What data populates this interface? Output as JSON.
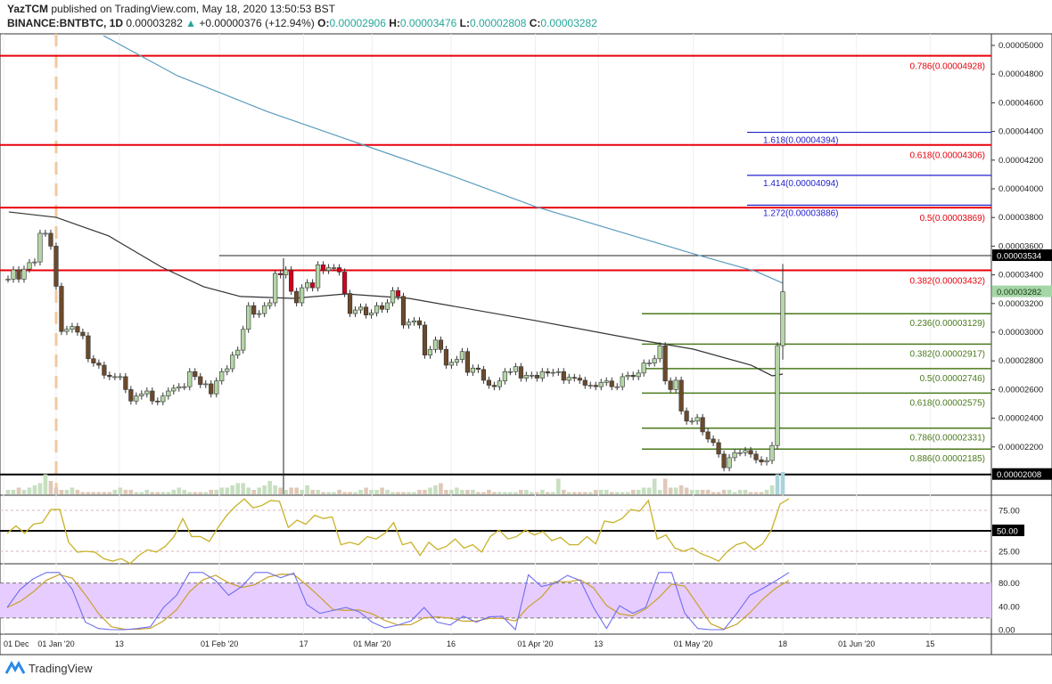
{
  "header": {
    "publisher": "YazTCM",
    "published_text": "published on TradingView.com, May 18, 2020 13:50:53 BST",
    "symbol": "BINANCE:BNTBTC, 1D",
    "last": "0.00003282",
    "change": "+0.00000376 (+12.94%)",
    "o_label": "O:",
    "o": "0.00002906",
    "h_label": "H:",
    "h": "0.00003476",
    "l_label": "L:",
    "l": "0.00002808",
    "c_label": "C:",
    "c": "0.00003282"
  },
  "footer": {
    "brand": "TradingView"
  },
  "colors": {
    "up": "#b5d6a7",
    "down_above_ma": "#d0021b",
    "down_below_ma": "#6b4a2b",
    "ma200": "#5b9bbd",
    "ma": "#333333",
    "fib_red": "#e8000b",
    "fib_blue": "#2222cc",
    "fib_green": "#4a7a1c",
    "rsi": "#c8b227",
    "stoch_k": "#6f6ff0",
    "stoch_d": "#c8a12a",
    "stoch_band": "#e7ccff",
    "last_price_bg": "#a5d6a7"
  },
  "chart_data": {
    "type": "candlestick",
    "last_date": "2020-05-18",
    "y_ticks": [
      "0.00005000",
      "0.00004800",
      "0.00004600",
      "0.00004400",
      "0.00004200",
      "0.00004000",
      "0.00003800",
      "0.00003600",
      "0.00003400",
      "0.00003200",
      "0.00003000",
      "0.00002800",
      "0.00002600",
      "0.00002400",
      "0.00002200"
    ],
    "x_ticks": [
      {
        "label": "01 Dec",
        "date": "2019-12-22"
      },
      {
        "label": "01 Jan '20",
        "date": "2020-01-01"
      },
      {
        "label": "13",
        "date": "2020-01-13"
      },
      {
        "label": "01 Feb '20",
        "date": "2020-02-01"
      },
      {
        "label": "17",
        "date": "2020-02-17"
      },
      {
        "label": "01 Mar '20",
        "date": "2020-03-01"
      },
      {
        "label": "16",
        "date": "2020-03-16"
      },
      {
        "label": "01 Apr '20",
        "date": "2020-04-01"
      },
      {
        "label": "13",
        "date": "2020-04-13"
      },
      {
        "label": "01 May '20",
        "date": "2020-05-01"
      },
      {
        "label": "18",
        "date": "2020-05-18"
      },
      {
        "label": "01 Jun '20",
        "date": "2020-06-01"
      },
      {
        "label": "15",
        "date": "2020-06-15"
      }
    ],
    "closes": [
      3.37e-05,
      3.435e-05,
      3.37e-05,
      3.44e-05,
      3.485e-05,
      3.49e-05,
      3.69e-05,
      3.69e-05,
      3.6e-05,
      3.32e-05,
      3.005e-05,
      3.02e-05,
      3.04e-05,
      3e-05,
      2.975e-05,
      2.815e-05,
      2.785e-05,
      2.77e-05,
      2.7e-05,
      2.69e-05,
      2.69e-05,
      2.69e-05,
      2.6e-05,
      2.52e-05,
      2.555e-05,
      2.57e-05,
      2.59e-05,
      2.52e-05,
      2.515e-05,
      2.555e-05,
      2.59e-05,
      2.61e-05,
      2.62e-05,
      2.62e-05,
      2.725e-05,
      2.69e-05,
      2.635e-05,
      2.64e-05,
      2.57e-05,
      2.66e-05,
      2.725e-05,
      2.745e-05,
      2.84e-05,
      2.875e-05,
      3.02e-05,
      3.185e-05,
      3.125e-05,
      3.13e-05,
      3.185e-05,
      3.205e-05,
      3.41e-05,
      3.4e-05,
      3.435e-05,
      3.285e-05,
      3.205e-05,
      3.31e-05,
      3.345e-05,
      3.31e-05,
      3.47e-05,
      3.43e-05,
      3.45e-05,
      3.45e-05,
      3.42e-05,
      3.27e-05,
      3.13e-05,
      3.155e-05,
      3.175e-05,
      3.12e-05,
      3.135e-05,
      3.185e-05,
      3.16e-05,
      3.205e-05,
      3.29e-05,
      3.25e-05,
      3.05e-05,
      3.07e-05,
      3.08e-05,
      3.05e-05,
      2.84e-05,
      2.88e-05,
      2.945e-05,
      2.88e-05,
      2.77e-05,
      2.79e-05,
      2.81e-05,
      2.865e-05,
      2.72e-05,
      2.75e-05,
      2.74e-05,
      2.665e-05,
      2.63e-05,
      2.62e-05,
      2.66e-05,
      2.725e-05,
      2.725e-05,
      2.76e-05,
      2.68e-05,
      2.7e-05,
      2.7e-05,
      2.68e-05,
      2.725e-05,
      2.715e-05,
      2.72e-05,
      2.725e-05,
      2.665e-05,
      2.685e-05,
      2.68e-05,
      2.665e-05,
      2.63e-05,
      2.63e-05,
      2.62e-05,
      2.65e-05,
      2.66e-05,
      2.62e-05,
      2.62e-05,
      2.69e-05,
      2.7e-05,
      2.69e-05,
      2.715e-05,
      2.785e-05,
      2.785e-05,
      2.815e-05,
      2.905e-05,
      2.66e-05,
      2.6e-05,
      2.665e-05,
      2.45e-05,
      2.38e-05,
      2.38e-05,
      2.405e-05,
      2.305e-05,
      2.255e-05,
      2.23e-05,
      2.15e-05,
      2.055e-05,
      2.125e-05,
      2.16e-05,
      2.16e-05,
      2.175e-05,
      2.15e-05,
      2.11e-05,
      2.095e-05,
      2.105e-05,
      2.21e-05,
      2.906e-05,
      3.282e-05
    ],
    "last_candle": {
      "open": 2.906e-05,
      "high": 3.476e-05,
      "low": 2.808e-05,
      "close": 3.282e-05
    },
    "volume_relative": [
      2,
      2,
      3,
      2,
      3,
      4,
      5,
      9,
      6,
      3,
      2,
      2,
      3,
      2,
      1,
      1,
      1,
      1,
      1,
      1,
      2,
      3,
      2,
      2,
      1,
      1,
      2,
      1,
      1,
      1,
      1,
      2,
      3,
      2,
      1,
      1,
      1,
      1,
      2,
      2,
      3,
      3,
      4,
      5,
      5,
      3,
      2,
      3,
      4,
      6,
      4,
      3,
      2,
      3,
      3,
      2,
      4,
      2,
      2,
      1,
      1,
      1,
      2,
      1,
      1,
      1,
      2,
      3,
      2,
      2,
      3,
      2,
      1,
      1,
      1,
      1,
      1,
      2,
      2,
      3,
      4,
      5,
      2,
      2,
      3,
      2,
      2,
      2,
      1,
      1,
      2,
      1,
      1,
      1,
      1,
      1,
      2,
      2,
      1,
      1,
      2,
      1,
      1,
      7,
      2,
      1,
      1,
      1,
      1,
      1,
      2,
      2,
      2,
      1,
      1,
      1,
      1,
      2,
      2,
      3,
      3,
      7,
      2,
      7,
      3,
      3,
      4,
      3,
      2,
      2,
      2,
      2,
      1,
      1,
      2,
      2,
      1,
      2,
      2,
      1,
      1,
      1,
      2,
      4,
      9,
      10
    ],
    "ma200": [
      [
        "2020-01-10",
        5.068e-05
      ],
      [
        "2020-01-24",
        4.789e-05
      ],
      [
        "2020-02-10",
        4.54e-05
      ],
      [
        "2020-02-27",
        4.323e-05
      ],
      [
        "2020-03-15",
        4.106e-05
      ],
      [
        "2020-04-01",
        3.876e-05
      ],
      [
        "2020-04-18",
        3.69e-05
      ],
      [
        "2020-05-01",
        3.547e-05
      ],
      [
        "2020-05-13",
        3.423e-05
      ],
      [
        "2020-05-18",
        3.342e-05
      ]
    ],
    "ma": [
      [
        "2019-12-23",
        3.839e-05
      ],
      [
        "2020-01-01",
        3.801e-05
      ],
      [
        "2020-01-11",
        3.671e-05
      ],
      [
        "2020-01-21",
        3.454e-05
      ],
      [
        "2020-01-29",
        3.317e-05
      ],
      [
        "2020-02-05",
        3.249e-05
      ],
      [
        "2020-02-15",
        3.236e-05
      ],
      [
        "2020-02-25",
        3.267e-05
      ],
      [
        "2020-03-08",
        3.236e-05
      ],
      [
        "2020-04-01",
        3.081e-05
      ],
      [
        "2020-04-21",
        2.944e-05
      ],
      [
        "2020-05-01",
        2.882e-05
      ],
      [
        "2020-05-12",
        2.77e-05
      ],
      [
        "2020-05-16",
        2.696e-05
      ],
      [
        "2020-05-18",
        2.708e-05
      ]
    ],
    "levels": {
      "retracement_red": [
        {
          "label": "0.786(0.00004928)",
          "value": 4.928e-05
        },
        {
          "label": "0.618(0.00004306)",
          "value": 4.306e-05
        },
        {
          "label": "0.5(0.00003869)",
          "value": 3.869e-05
        },
        {
          "label": "0.382(0.00003432)",
          "value": 3.432e-05
        }
      ],
      "extension_blue": [
        {
          "label": "1.618(0.00004394)",
          "value": 4.394e-05
        },
        {
          "label": "1.414(0.00004094)",
          "value": 4.094e-05
        },
        {
          "label": "1.272(0.00003886)",
          "value": 3.886e-05
        }
      ],
      "retracement_green": [
        {
          "label": "0.236(0.00003129)",
          "value": 3.129e-05
        },
        {
          "label": "0.382(0.00002917)",
          "value": 2.917e-05
        },
        {
          "label": "0.5(0.00002746)",
          "value": 2.746e-05
        },
        {
          "label": "0.618(0.00002575)",
          "value": 2.575e-05
        },
        {
          "label": "0.786(0.00002331)",
          "value": 2.331e-05
        },
        {
          "label": "0.886(0.00002185)",
          "value": 2.185e-05
        }
      ],
      "resistance": {
        "label": "0.00003534",
        "value": 3.534e-05
      },
      "support": {
        "label": "0.00002008",
        "value": 2.008e-05
      },
      "last_price": {
        "label": "0.00003282",
        "value": 3.282e-05
      }
    },
    "rsi": {
      "ticks": [
        "75.00",
        "50.00",
        "25.00"
      ],
      "values": [
        47,
        56,
        47,
        58,
        60,
        76,
        76,
        36,
        24,
        25,
        24,
        16,
        13,
        16,
        10,
        20,
        27,
        24,
        31,
        43,
        65,
        43,
        43,
        37,
        54,
        69,
        80,
        89,
        78,
        81,
        87,
        86,
        54,
        63,
        58,
        69,
        65,
        67,
        33,
        36,
        33,
        43,
        40,
        47,
        60,
        33,
        36,
        20,
        36,
        27,
        31,
        40,
        29,
        33,
        24,
        43,
        51,
        40,
        43,
        51,
        45,
        49,
        38,
        42,
        33,
        33,
        43,
        34,
        62,
        60,
        65,
        76,
        74,
        87,
        40,
        45,
        29,
        25,
        29,
        22,
        18,
        13,
        25,
        33,
        36,
        27,
        34,
        51,
        83,
        89
      ]
    },
    "stoch": {
      "ticks": [
        "80.00",
        "40.00",
        "0.00"
      ],
      "k": [
        38,
        69,
        87,
        98,
        98,
        69,
        13,
        2,
        0,
        0,
        2,
        5,
        38,
        59,
        98,
        98,
        84,
        59,
        74,
        98,
        98,
        89,
        97,
        43,
        28,
        33,
        38,
        31,
        13,
        3,
        8,
        15,
        38,
        13,
        8,
        23,
        13,
        22,
        23,
        0,
        94,
        74,
        79,
        93,
        84,
        38,
        2,
        41,
        28,
        38,
        98,
        98,
        28,
        2,
        0,
        0,
        28,
        59,
        71,
        84,
        98
      ]
    }
  }
}
